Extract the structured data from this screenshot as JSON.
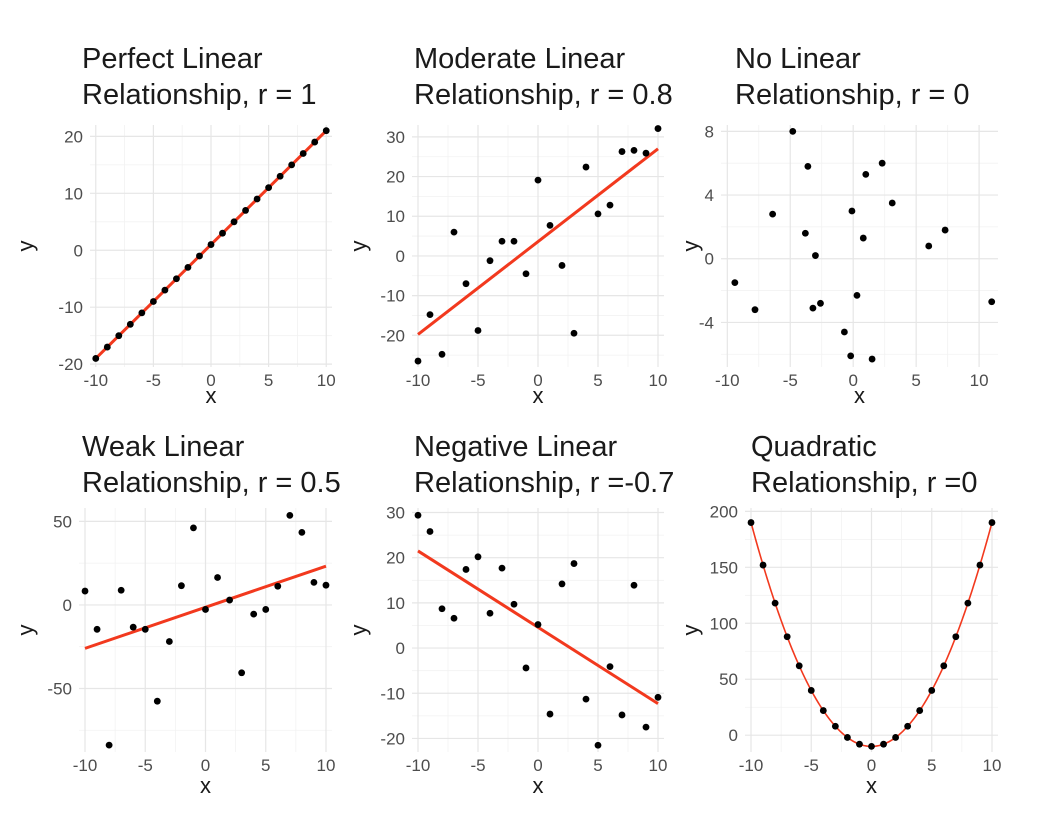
{
  "chart_data": [
    {
      "id": "p1",
      "type": "scatter",
      "title_lines": [
        "Perfect Linear",
        "Relationship, r = 1"
      ],
      "xlabel": "x",
      "ylabel": "y",
      "xlim": [
        -10.5,
        10.5
      ],
      "ylim": [
        -20.5,
        22
      ],
      "xticks": [
        -10,
        -5,
        0,
        5,
        10
      ],
      "yticks": [
        -20,
        -10,
        0,
        10,
        20
      ],
      "x": [
        -10,
        -9,
        -8,
        -7,
        -6,
        -5,
        -4,
        -3,
        -2,
        -1,
        0,
        1,
        2,
        3,
        4,
        5,
        6,
        7,
        8,
        9,
        10
      ],
      "y": [
        -19,
        -17,
        -15,
        -13,
        -11,
        -9,
        -7,
        -5,
        -3,
        -1,
        1,
        3,
        5,
        7,
        9,
        11,
        13,
        15,
        17,
        19,
        21
      ],
      "fit": {
        "type": "line",
        "points": [
          [
            -10,
            -19
          ],
          [
            10,
            21
          ]
        ],
        "color": "#f2391e"
      }
    },
    {
      "id": "p2",
      "type": "scatter",
      "title_lines": [
        "Moderate Linear",
        "Relationship, r = 0.8"
      ],
      "xlabel": "x",
      "ylabel": "y",
      "xlim": [
        -10.5,
        10.5
      ],
      "ylim": [
        -28,
        33
      ],
      "xticks": [
        -10,
        -5,
        0,
        5,
        10
      ],
      "yticks": [
        -20,
        -10,
        0,
        10,
        20,
        30
      ],
      "x": [
        -10,
        -9,
        -8,
        -7,
        -6,
        -5,
        -4,
        -3,
        -2,
        -1,
        0,
        1,
        2,
        3,
        4,
        5,
        6,
        7,
        8,
        9,
        10
      ],
      "y": [
        -26.5,
        -14.8,
        -24.8,
        6,
        -7,
        -18.8,
        -1.2,
        3.7,
        3.7,
        -4.5,
        19.1,
        7.7,
        -2.4,
        -19.5,
        22.4,
        10.6,
        12.8,
        26.3,
        26.6,
        25.9,
        32.1
      ],
      "fit": {
        "type": "line",
        "points": [
          [
            -10,
            -19.8
          ],
          [
            10,
            27
          ]
        ],
        "color": "#f2391e"
      }
    },
    {
      "id": "p3",
      "type": "scatter",
      "title_lines": [
        "No Linear",
        "Relationship, r = 0"
      ],
      "xlabel": "x",
      "ylabel": "y",
      "xlim": [
        -10.5,
        11.5
      ],
      "ylim": [
        -6.8,
        8.4
      ],
      "xticks": [
        -10,
        -5,
        0,
        5,
        10
      ],
      "yticks": [
        -4,
        0,
        4,
        8
      ],
      "x": [
        -9.4,
        -7.8,
        -6.4,
        -4.8,
        -3.8,
        -3.6,
        -3.2,
        -3.0,
        -2.6,
        -0.7,
        -0.2,
        -0.1,
        0.3,
        0.8,
        1.0,
        1.5,
        2.3,
        3.1,
        6.0,
        7.3,
        11.0
      ],
      "y": [
        -1.5,
        -3.2,
        2.8,
        8.0,
        1.6,
        5.8,
        -3.1,
        0.2,
        -2.8,
        -4.6,
        -6.1,
        3.0,
        -2.3,
        1.3,
        5.3,
        -6.3,
        6.0,
        3.5,
        0.8,
        1.8,
        -2.7
      ]
    },
    {
      "id": "p4",
      "type": "scatter",
      "title_lines": [
        "Weak Linear",
        "Relationship, r = 0.5"
      ],
      "xlabel": "x",
      "ylabel": "y",
      "xlim": [
        -10.5,
        10.5
      ],
      "ylim": [
        -88,
        58
      ],
      "xticks": [
        -10,
        -5,
        0,
        5,
        10
      ],
      "yticks": [
        -50,
        0,
        50
      ],
      "x": [
        -10,
        -9,
        -8,
        -7,
        -6,
        -5,
        -4,
        -3,
        -2,
        -1,
        0,
        1,
        2,
        3,
        4,
        5,
        6,
        7,
        8,
        9,
        10
      ],
      "y": [
        8.3,
        -14.6,
        -83.9,
        8.8,
        -13.3,
        -14.6,
        -57.6,
        -21.9,
        11.5,
        46.1,
        -2.7,
        16.4,
        2.9,
        -40.6,
        -5.5,
        -2.7,
        11.2,
        53.6,
        43.4,
        13.5,
        11.8
      ],
      "fit": {
        "type": "line",
        "points": [
          [
            -10,
            -26
          ],
          [
            10,
            23.2
          ]
        ],
        "color": "#f2391e"
      }
    },
    {
      "id": "p5",
      "type": "scatter",
      "title_lines": [
        "Negative Linear",
        "Relationship, r =-0.7"
      ],
      "xlabel": "x",
      "ylabel": "y",
      "xlim": [
        -10.5,
        10.5
      ],
      "ylim": [
        -23,
        31
      ],
      "xticks": [
        -10,
        -5,
        0,
        5,
        10
      ],
      "yticks": [
        -20,
        -10,
        0,
        10,
        20,
        30
      ],
      "x": [
        -10,
        -9,
        -8,
        -7,
        -6,
        -5,
        -4,
        -3,
        -2,
        -1,
        0,
        1,
        2,
        3,
        4,
        5,
        6,
        7,
        8,
        9,
        10
      ],
      "y": [
        29.4,
        25.8,
        8.7,
        6.6,
        17.4,
        20.2,
        7.7,
        17.7,
        9.7,
        -4.4,
        5.2,
        -14.6,
        14.2,
        18.7,
        -11.3,
        -21.5,
        -4.1,
        -14.8,
        13.9,
        -17.5,
        -10.9
      ],
      "fit": {
        "type": "line",
        "points": [
          [
            -10,
            21.5
          ],
          [
            10,
            -12.3
          ]
        ],
        "color": "#f2391e"
      }
    },
    {
      "id": "p6",
      "type": "scatter",
      "title_lines": [
        "Quadratic",
        "Relationship, r =0"
      ],
      "xlabel": "x",
      "ylabel": "y",
      "xlim": [
        -10.5,
        10.5
      ],
      "ylim": [
        -15,
        203
      ],
      "xticks": [
        -10,
        -5,
        0,
        5,
        10
      ],
      "yticks": [
        0,
        50,
        100,
        150,
        200
      ],
      "x": [
        -10,
        -9,
        -8,
        -7,
        -6,
        -5,
        -4,
        -3,
        -2,
        -1,
        0,
        1,
        2,
        3,
        4,
        5,
        6,
        7,
        8,
        9,
        10
      ],
      "y": [
        190,
        152,
        118,
        88,
        62,
        40,
        22,
        8,
        -2,
        -8,
        -10,
        -8,
        -2,
        8,
        22,
        40,
        62,
        88,
        118,
        152,
        190
      ],
      "fit": {
        "type": "curve",
        "formula": "y = 2x^2 - 10",
        "color": "#f2391e"
      }
    }
  ]
}
